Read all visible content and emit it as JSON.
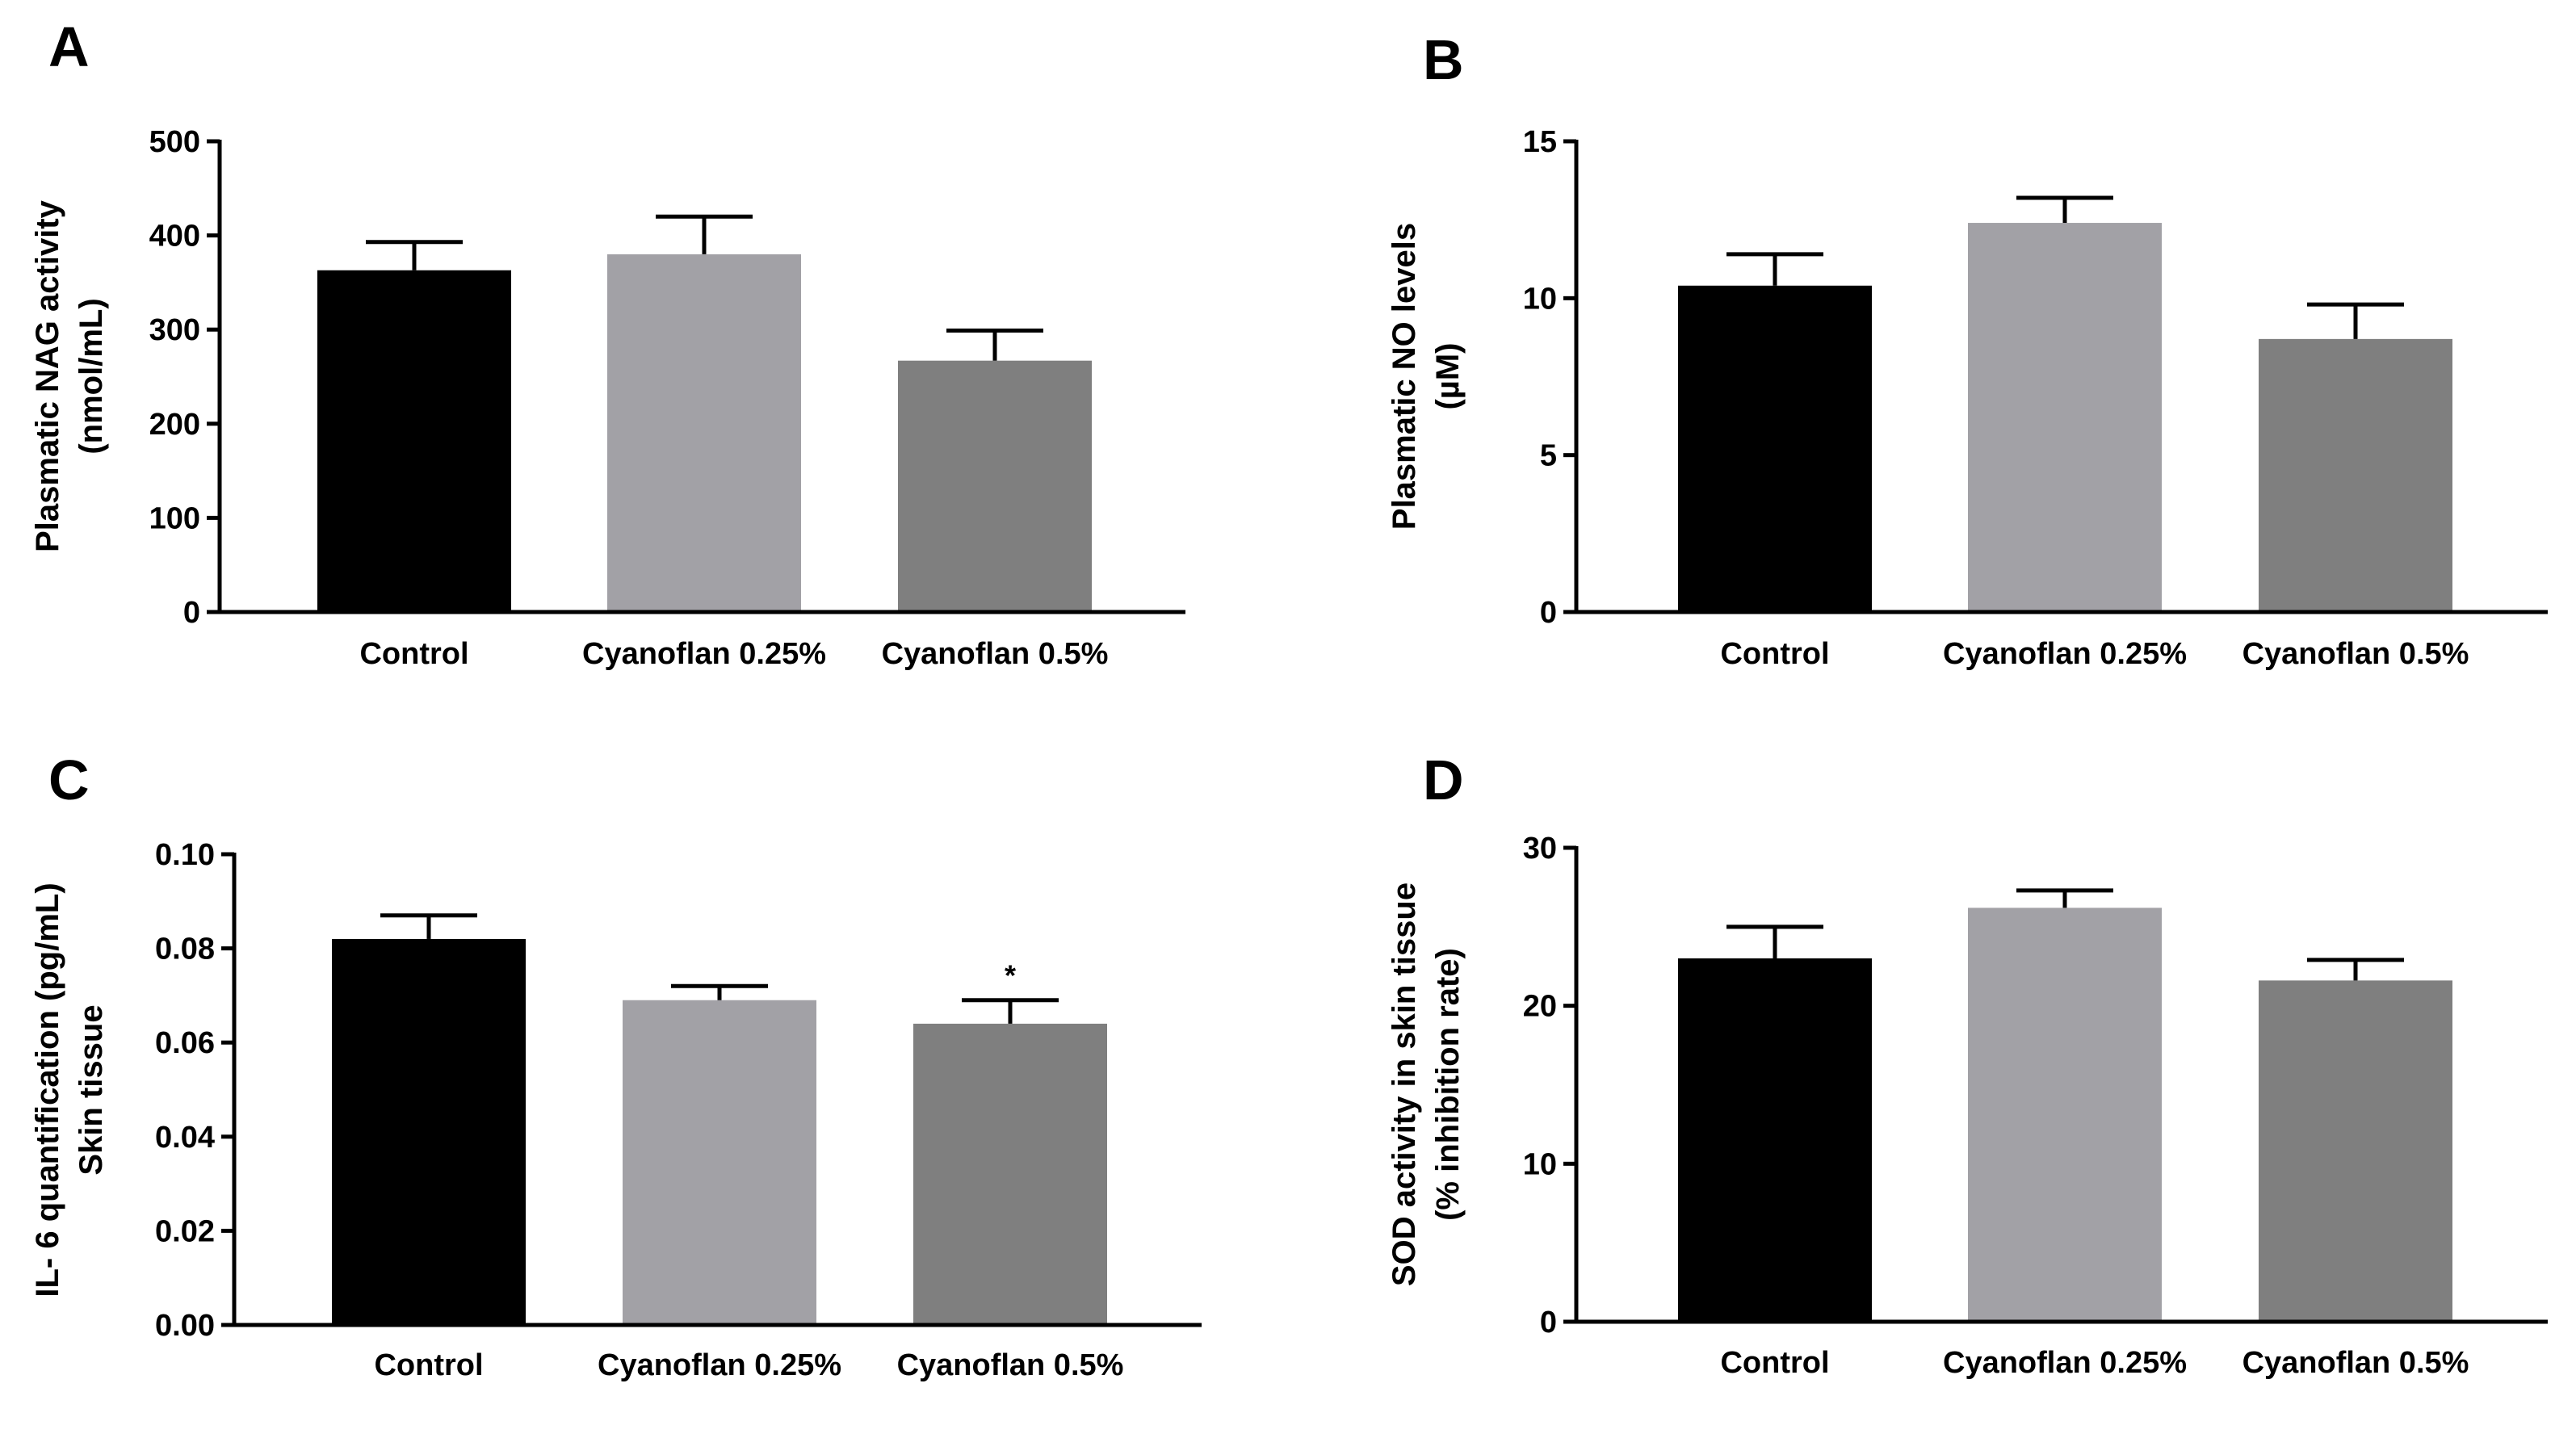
{
  "chart_data": [
    {
      "type": "bar",
      "panel_label": "A",
      "categories": [
        "Control",
        "Cyanoflan 0.25%",
        "Cyanoflan 0.5%"
      ],
      "values": [
        363,
        380,
        267
      ],
      "errors": [
        30,
        40,
        32
      ],
      "colors": [
        "#000000",
        "#a2a1a6",
        "#7f7f7f"
      ],
      "ylabel": [
        "Plasmatic NAG activity",
        "(nmol/mL)"
      ],
      "ylim": [
        0,
        500
      ],
      "yticks": [
        0,
        100,
        200,
        300,
        400,
        500
      ],
      "ytick_labels": [
        "0",
        "100",
        "200",
        "300",
        "400",
        "500"
      ],
      "annotations": [
        "",
        "",
        ""
      ],
      "grid": false,
      "legend": "none"
    },
    {
      "type": "bar",
      "panel_label": "B",
      "categories": [
        "Control",
        "Cyanoflan 0.25%",
        "Cyanoflan 0.5%"
      ],
      "values": [
        10.4,
        12.4,
        8.7
      ],
      "errors": [
        1.0,
        0.8,
        1.1
      ],
      "colors": [
        "#000000",
        "#a2a1a6",
        "#7f7f7f"
      ],
      "ylabel": [
        "Plasmatic NO levels",
        "(µM)"
      ],
      "ylim": [
        0,
        15
      ],
      "yticks": [
        0,
        5,
        10,
        15
      ],
      "ytick_labels": [
        "0",
        "5",
        "10",
        "15"
      ],
      "annotations": [
        "",
        "",
        ""
      ],
      "grid": false,
      "legend": "none"
    },
    {
      "type": "bar",
      "panel_label": "C",
      "categories": [
        "Control",
        "Cyanoflan 0.25%",
        "Cyanoflan 0.5%"
      ],
      "values": [
        0.082,
        0.069,
        0.064
      ],
      "errors": [
        0.005,
        0.003,
        0.005
      ],
      "colors": [
        "#000000",
        "#a2a1a6",
        "#7f7f7f"
      ],
      "ylabel": [
        "IL- 6 quantification (pg/mL)",
        "Skin tissue"
      ],
      "ylim": [
        0,
        0.1
      ],
      "yticks": [
        0,
        0.02,
        0.04,
        0.06,
        0.08,
        0.1
      ],
      "ytick_labels": [
        "0.00",
        "0.02",
        "0.04",
        "0.06",
        "0.08",
        "0.10"
      ],
      "annotations": [
        "",
        "",
        "*"
      ],
      "grid": false,
      "legend": "none"
    },
    {
      "type": "bar",
      "panel_label": "D",
      "categories": [
        "Control",
        "Cyanoflan 0.25%",
        "Cyanoflan 0.5%"
      ],
      "values": [
        23.0,
        26.2,
        21.6
      ],
      "errors": [
        2.0,
        1.1,
        1.3
      ],
      "colors": [
        "#000000",
        "#a2a1a6",
        "#7f7f7f"
      ],
      "ylabel": [
        "SOD activity in skin tissue",
        "(% inhibition rate)"
      ],
      "ylim": [
        0,
        30
      ],
      "yticks": [
        0,
        10,
        20,
        30
      ],
      "ytick_labels": [
        "0",
        "10",
        "20",
        "30"
      ],
      "annotations": [
        "",
        "",
        ""
      ],
      "grid": false,
      "legend": "none"
    }
  ]
}
